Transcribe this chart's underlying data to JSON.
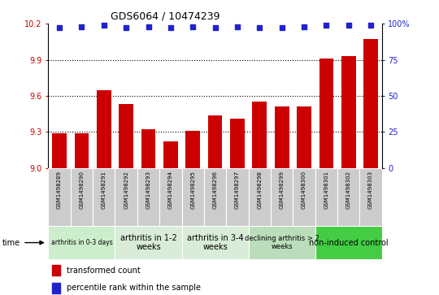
{
  "title": "GDS6064 / 10474239",
  "samples": [
    "GSM1498289",
    "GSM1498290",
    "GSM1498291",
    "GSM1498292",
    "GSM1498293",
    "GSM1498294",
    "GSM1498295",
    "GSM1498296",
    "GSM1498297",
    "GSM1498298",
    "GSM1498299",
    "GSM1498300",
    "GSM1498301",
    "GSM1498302",
    "GSM1498303"
  ],
  "bar_values": [
    9.29,
    9.29,
    9.65,
    9.53,
    9.32,
    9.22,
    9.31,
    9.44,
    9.41,
    9.55,
    9.51,
    9.51,
    9.91,
    9.93,
    10.07
  ],
  "dot_values": [
    97,
    98,
    99,
    97,
    98,
    97,
    98,
    97,
    98,
    97,
    97,
    98,
    99,
    99,
    99
  ],
  "ylim_left": [
    9.0,
    10.2
  ],
  "ylim_right": [
    0,
    100
  ],
  "yticks_left": [
    9.0,
    9.3,
    9.6,
    9.9,
    10.2
  ],
  "yticks_right": [
    0,
    25,
    50,
    75,
    100
  ],
  "bar_color": "#cc0000",
  "dot_color": "#2222cc",
  "groups": [
    {
      "label": "arthritis in 0-3 days",
      "start": 0,
      "end": 3,
      "color": "#cceecc",
      "font_size": 5.5
    },
    {
      "label": "arthritis in 1-2\nweeks",
      "start": 3,
      "end": 6,
      "color": "#d8ecd8",
      "font_size": 7
    },
    {
      "label": "arthritis in 3-4\nweeks",
      "start": 6,
      "end": 9,
      "color": "#d8ecd8",
      "font_size": 7
    },
    {
      "label": "declining arthritis > 2\nweeks",
      "start": 9,
      "end": 12,
      "color": "#bbddbb",
      "font_size": 6
    },
    {
      "label": "non-induced control",
      "start": 12,
      "end": 15,
      "color": "#44cc44",
      "font_size": 7
    }
  ],
  "legend_bar_label": "transformed count",
  "legend_dot_label": "percentile rank within the sample",
  "time_label": "time",
  "sample_bg_color": "#cccccc",
  "sample_border_color": "#ffffff"
}
